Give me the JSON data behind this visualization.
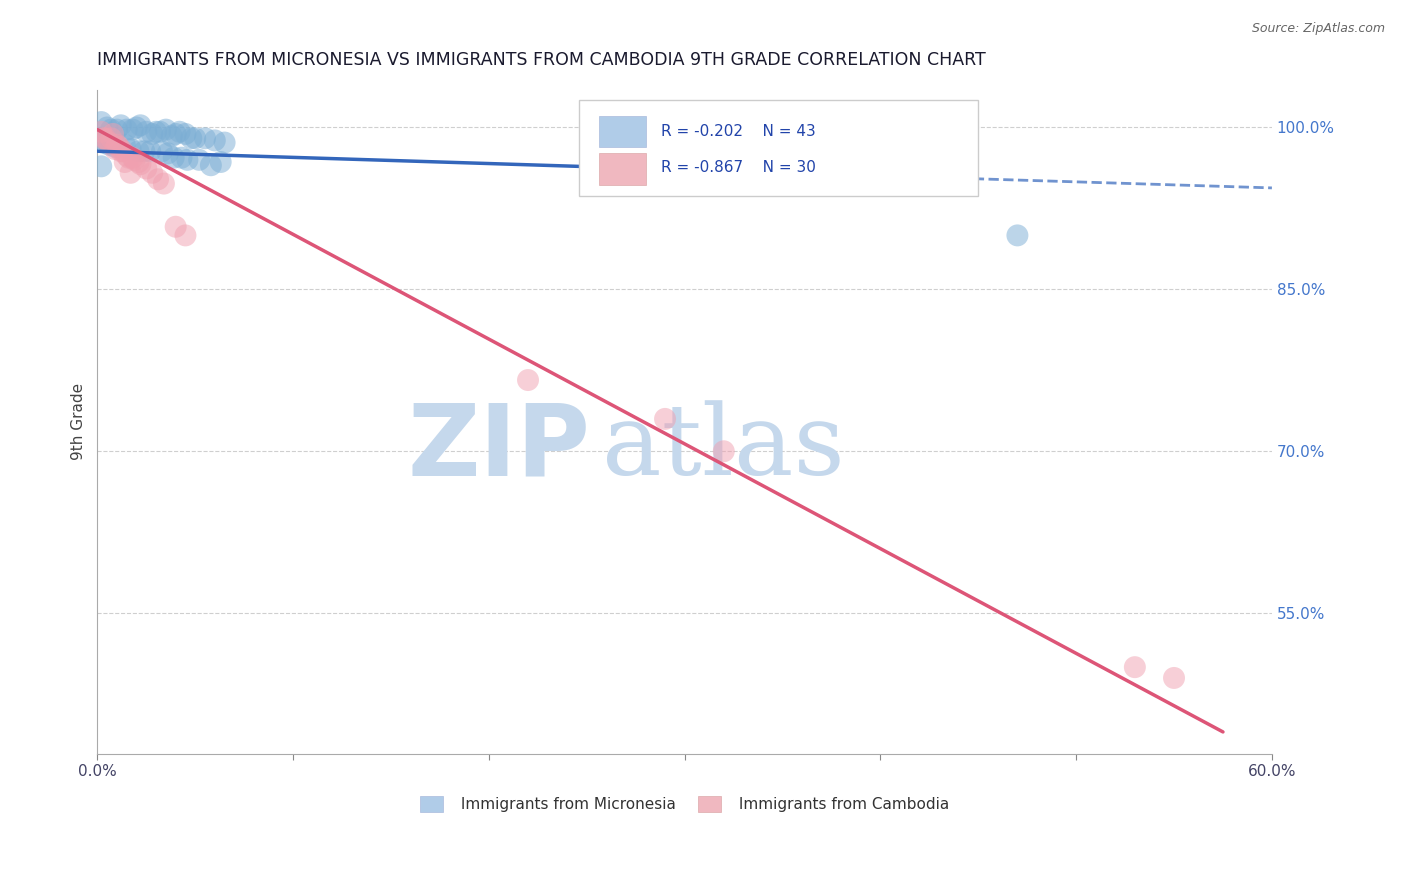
{
  "title": "IMMIGRANTS FROM MICRONESIA VS IMMIGRANTS FROM CAMBODIA 9TH GRADE CORRELATION CHART",
  "source": "Source: ZipAtlas.com",
  "ylabel": "9th Grade",
  "ylabel_right_vals": [
    1.0,
    0.85,
    0.7,
    0.55
  ],
  "ylabel_right_labels": [
    "100.0%",
    "85.0%",
    "70.0%",
    "55.0%"
  ],
  "xmin": 0.0,
  "xmax": 0.6,
  "ymin": 0.42,
  "ymax": 1.035,
  "watermark_zip": "ZIP",
  "watermark_atlas": "atlas",
  "legend_blue_r": "R = -0.202",
  "legend_blue_n": "N = 43",
  "legend_pink_r": "R = -0.867",
  "legend_pink_n": "N = 30",
  "blue_scatter": [
    [
      0.002,
      1.005
    ],
    [
      0.005,
      1.0
    ],
    [
      0.007,
      0.998
    ],
    [
      0.01,
      0.998
    ],
    [
      0.012,
      1.002
    ],
    [
      0.015,
      0.998
    ],
    [
      0.018,
      0.998
    ],
    [
      0.02,
      1.0
    ],
    [
      0.022,
      1.002
    ],
    [
      0.025,
      0.996
    ],
    [
      0.028,
      0.994
    ],
    [
      0.03,
      0.996
    ],
    [
      0.032,
      0.996
    ],
    [
      0.035,
      0.998
    ],
    [
      0.038,
      0.992
    ],
    [
      0.04,
      0.994
    ],
    [
      0.042,
      0.996
    ],
    [
      0.045,
      0.994
    ],
    [
      0.048,
      0.99
    ],
    [
      0.05,
      0.99
    ],
    [
      0.055,
      0.99
    ],
    [
      0.06,
      0.988
    ],
    [
      0.065,
      0.986
    ],
    [
      0.001,
      0.99
    ],
    [
      0.003,
      0.986
    ],
    [
      0.006,
      0.984
    ],
    [
      0.009,
      0.982
    ],
    [
      0.014,
      0.984
    ],
    [
      0.017,
      0.98
    ],
    [
      0.021,
      0.978
    ],
    [
      0.024,
      0.978
    ],
    [
      0.027,
      0.978
    ],
    [
      0.033,
      0.978
    ],
    [
      0.036,
      0.976
    ],
    [
      0.039,
      0.972
    ],
    [
      0.043,
      0.972
    ],
    [
      0.046,
      0.97
    ],
    [
      0.052,
      0.97
    ],
    [
      0.058,
      0.965
    ],
    [
      0.063,
      0.968
    ],
    [
      0.3,
      0.956
    ],
    [
      0.47,
      0.9
    ],
    [
      0.002,
      0.964
    ]
  ],
  "pink_scatter": [
    [
      0.002,
      0.996
    ],
    [
      0.003,
      0.99
    ],
    [
      0.006,
      0.986
    ],
    [
      0.009,
      0.98
    ],
    [
      0.012,
      0.978
    ],
    [
      0.015,
      0.974
    ],
    [
      0.018,
      0.972
    ],
    [
      0.021,
      0.968
    ],
    [
      0.004,
      0.99
    ],
    [
      0.007,
      0.99
    ],
    [
      0.01,
      0.984
    ],
    [
      0.013,
      0.978
    ],
    [
      0.016,
      0.972
    ],
    [
      0.019,
      0.97
    ],
    [
      0.022,
      0.966
    ],
    [
      0.025,
      0.962
    ],
    [
      0.028,
      0.958
    ],
    [
      0.031,
      0.952
    ],
    [
      0.034,
      0.948
    ],
    [
      0.008,
      0.994
    ],
    [
      0.011,
      0.982
    ],
    [
      0.014,
      0.968
    ],
    [
      0.017,
      0.958
    ],
    [
      0.04,
      0.908
    ],
    [
      0.045,
      0.9
    ],
    [
      0.22,
      0.766
    ],
    [
      0.29,
      0.73
    ],
    [
      0.32,
      0.7
    ],
    [
      0.53,
      0.5
    ],
    [
      0.55,
      0.49
    ]
  ],
  "blue_line_solid": [
    [
      0.0,
      0.978
    ],
    [
      0.35,
      0.958
    ]
  ],
  "blue_line_dashed": [
    [
      0.35,
      0.958
    ],
    [
      0.6,
      0.944
    ]
  ],
  "pink_line": [
    [
      0.0,
      0.998
    ],
    [
      0.575,
      0.44
    ]
  ],
  "title_color": "#1a1a2e",
  "blue_color": "#7aadd4",
  "pink_color": "#f0a0b0",
  "line_blue_color": "#3366bb",
  "line_pink_color": "#dd5577",
  "grid_color": "#bbbbbb",
  "background_color": "#ffffff",
  "watermark_color": "#c5d8ec",
  "source_color": "#666666"
}
